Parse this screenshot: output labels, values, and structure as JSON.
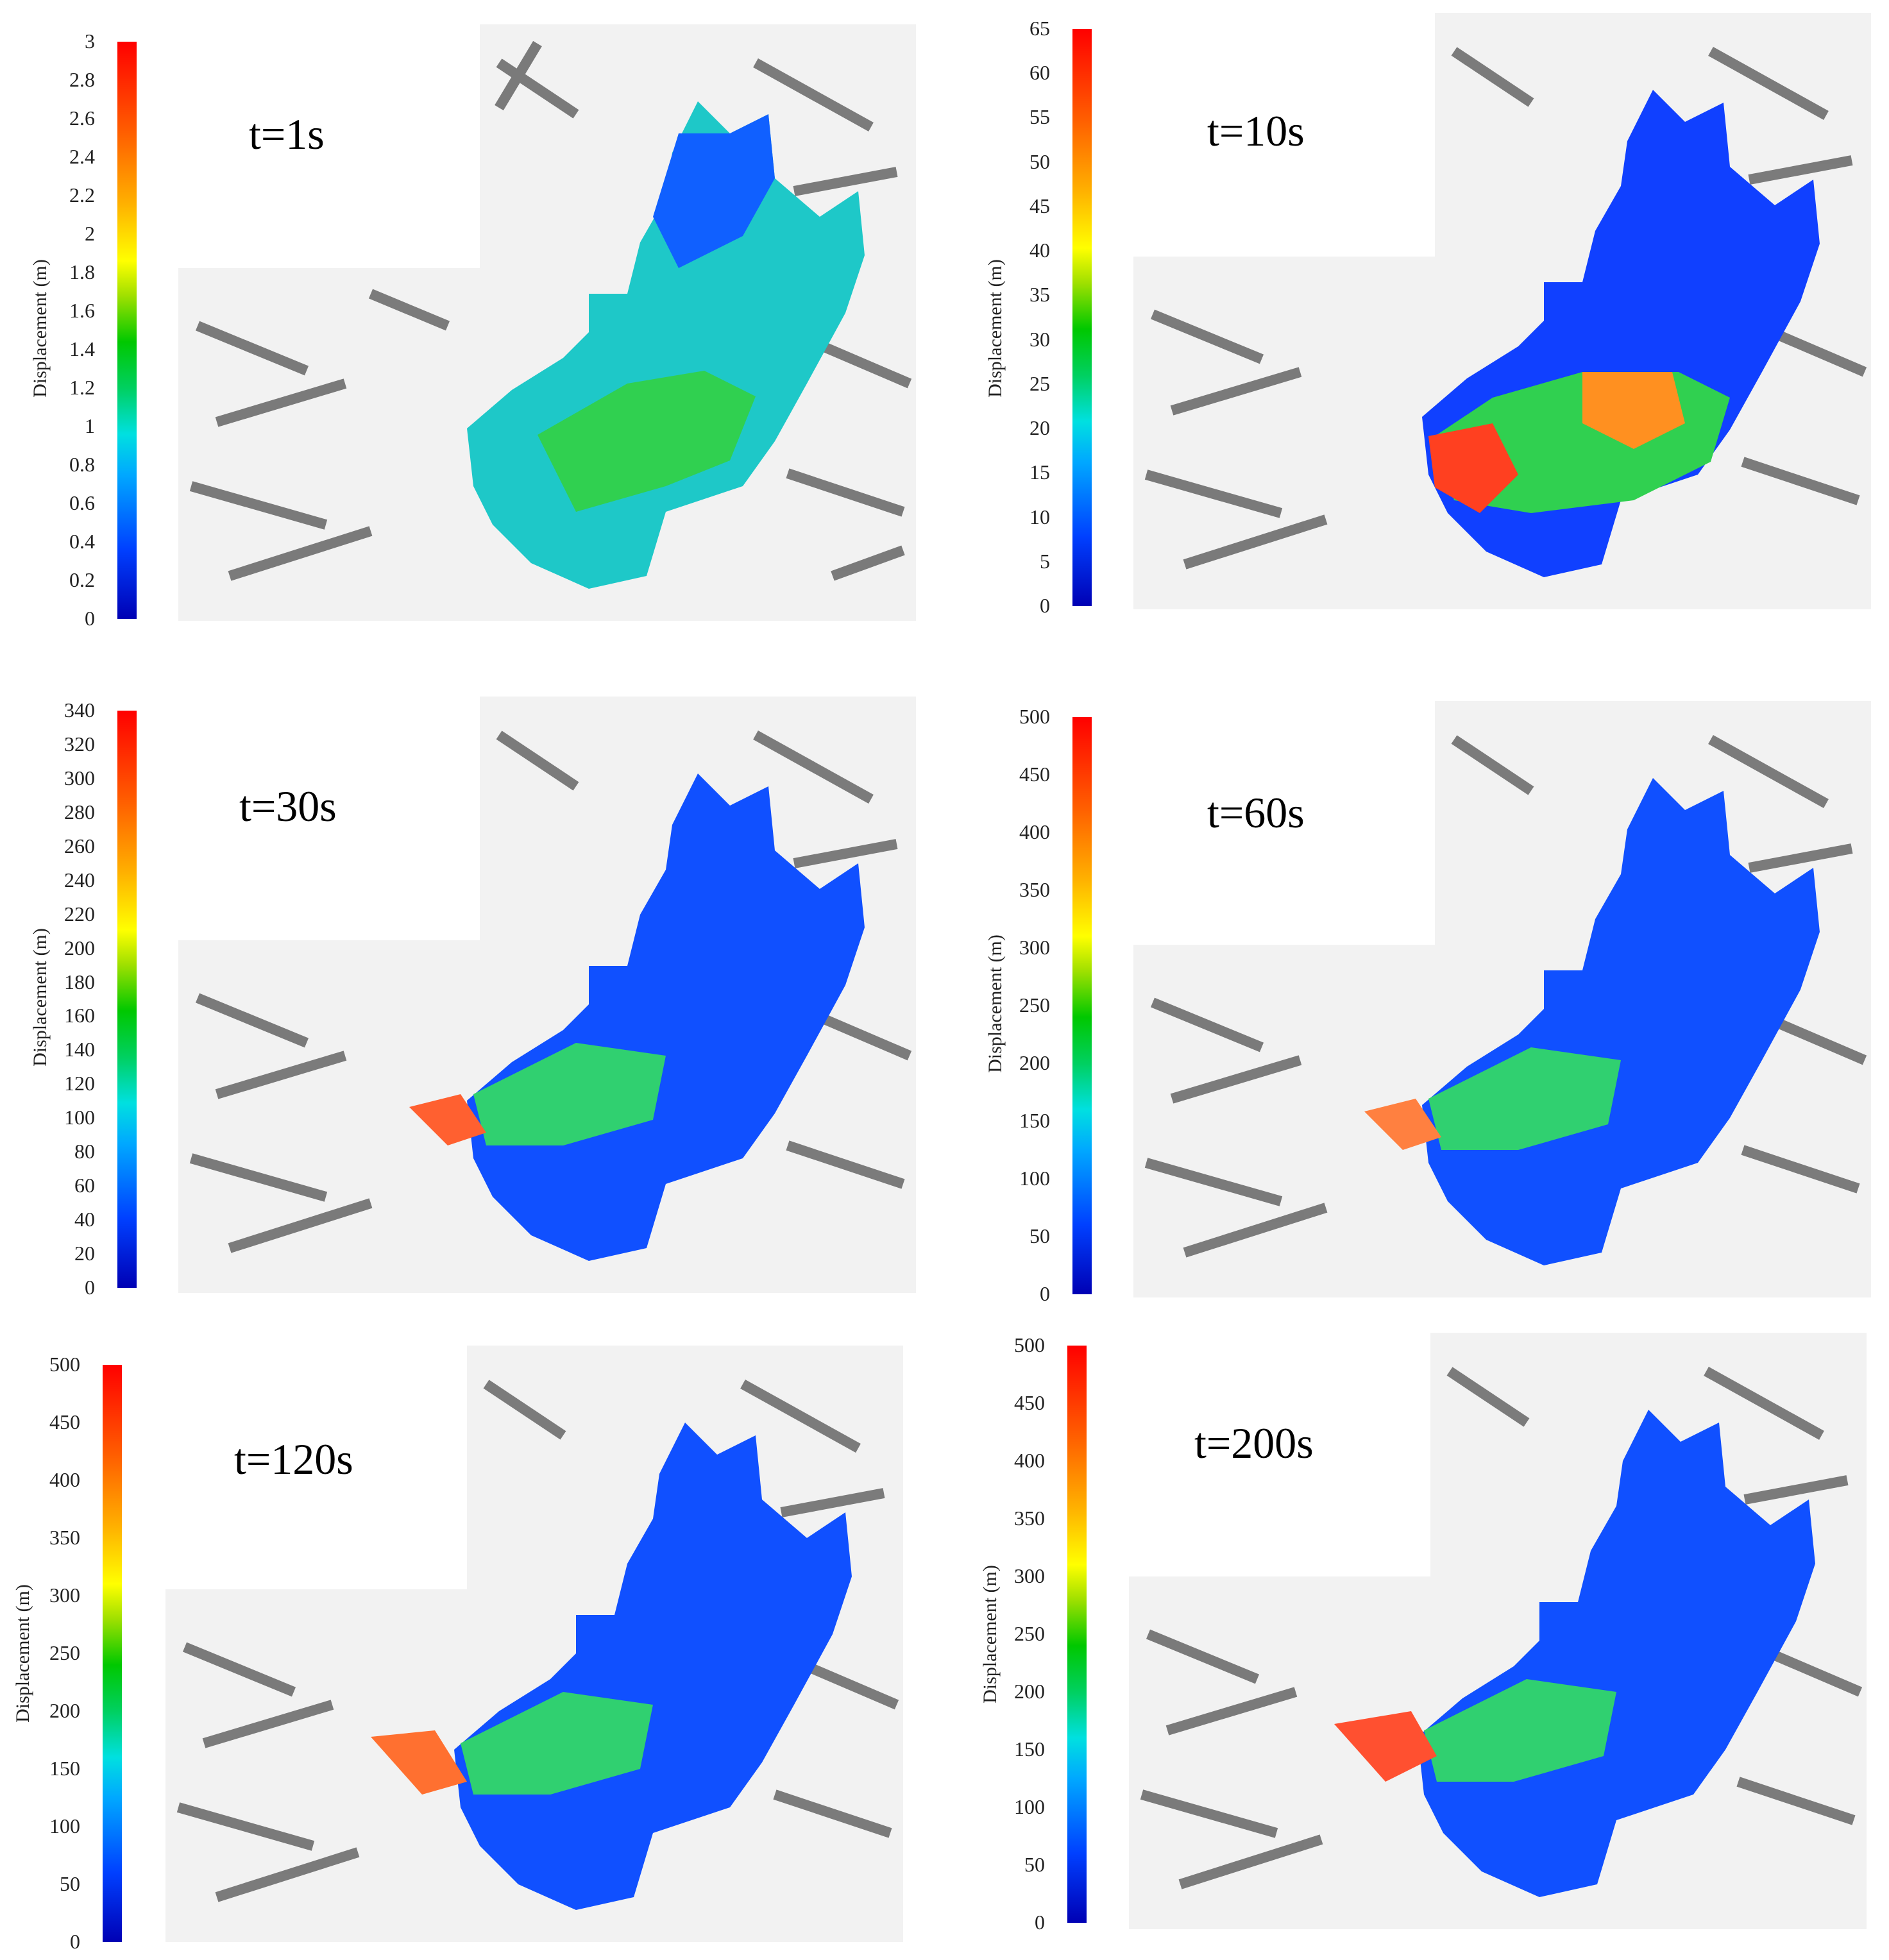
{
  "panels": [
    {
      "time": "t=1s",
      "ylabel": "Displacement (m)",
      "ticks": [
        "3",
        "2.8",
        "2.6",
        "2.4",
        "2.2",
        "2",
        "1.8",
        "1.6",
        "1.4",
        "1.2",
        "1",
        "0.8",
        "0.6",
        "0.4",
        "0.2",
        "0"
      ]
    },
    {
      "time": "t=10s",
      "ylabel": "Displacement (m)",
      "ticks": [
        "65",
        "60",
        "55",
        "50",
        "45",
        "40",
        "35",
        "30",
        "25",
        "20",
        "15",
        "10",
        "5",
        "0"
      ]
    },
    {
      "time": "t=30s",
      "ylabel": "Displacement (m)",
      "ticks": [
        "340",
        "320",
        "300",
        "280",
        "260",
        "240",
        "220",
        "200",
        "180",
        "160",
        "140",
        "120",
        "100",
        "80",
        "60",
        "40",
        "20",
        "0"
      ]
    },
    {
      "time": "t=60s",
      "ylabel": "Displacement (m)",
      "ticks": [
        "500",
        "450",
        "400",
        "350",
        "300",
        "250",
        "200",
        "150",
        "100",
        "50",
        "0"
      ]
    },
    {
      "time": "t=120s",
      "ylabel": "Displacement (m)",
      "ticks": [
        "500",
        "450",
        "400",
        "350",
        "300",
        "250",
        "200",
        "150",
        "100",
        "50",
        "0"
      ]
    },
    {
      "time": "t=200s",
      "ylabel": "Displacement (m)",
      "ticks": [
        "500",
        "450",
        "400",
        "350",
        "300",
        "250",
        "200",
        "150",
        "100",
        "50",
        "0"
      ]
    }
  ],
  "colors": {
    "low": "#0000b4",
    "mid": "#00c800",
    "high": "#ff0000",
    "terrain": "#6e6e6e",
    "background": "#f2f2f2"
  }
}
